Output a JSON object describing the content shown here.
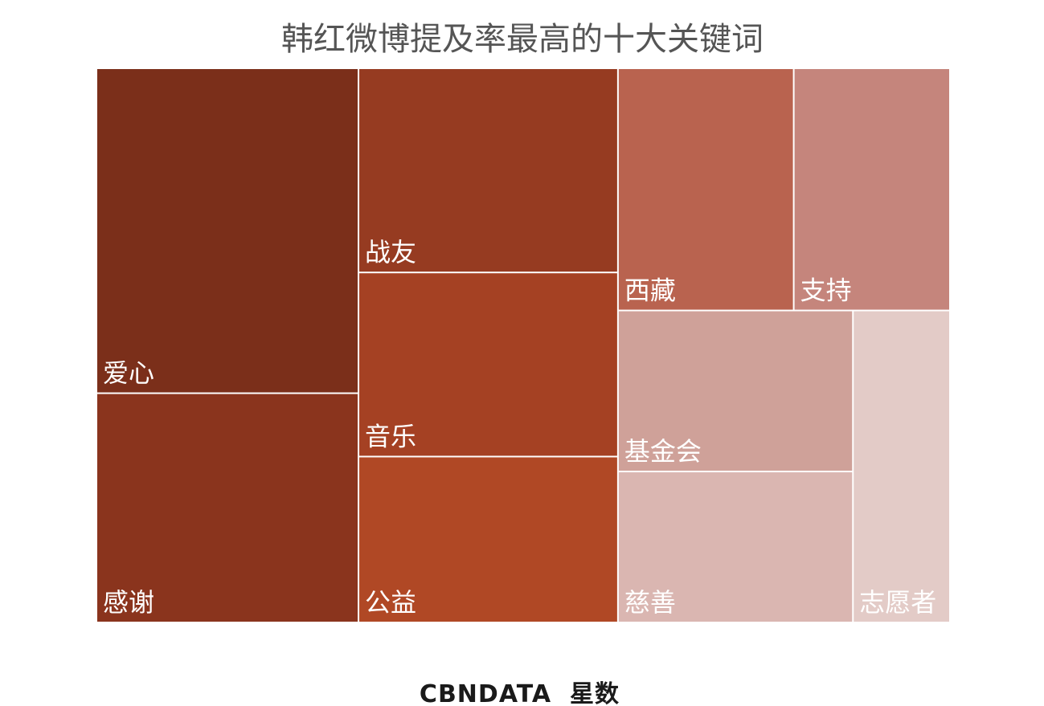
{
  "chart_data": {
    "type": "treemap",
    "title": "韩红微博提及率最高的十大关键词",
    "categories": [
      "爱心",
      "感谢",
      "战友",
      "音乐",
      "公益",
      "西藏",
      "支持",
      "基金会",
      "慈善",
      "志愿者"
    ],
    "values": [
      18.0,
      12.7,
      11.2,
      10.1,
      9.1,
      9.0,
      8.0,
      8.0,
      7.5,
      6.4
    ],
    "colors": [
      "#7b2f1a",
      "#8a341d",
      "#963b21",
      "#a54123",
      "#b04825",
      "#b9634f",
      "#c5857c",
      "#cfa199",
      "#dab6b1",
      "#e3cbc7"
    ],
    "footer": {
      "brand": "CBNDATA",
      "name": "星数"
    }
  }
}
